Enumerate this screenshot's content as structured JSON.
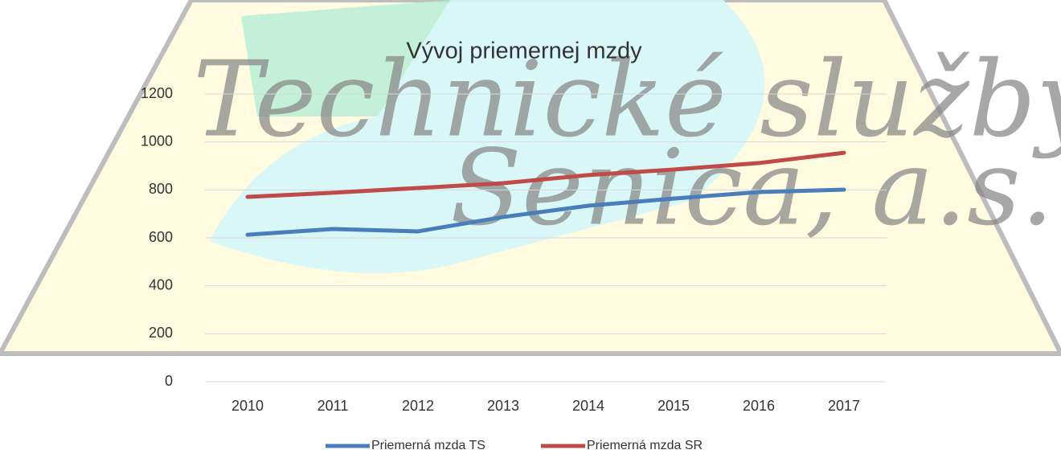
{
  "watermark": [
    "Technické služby",
    "Senica, a.s."
  ],
  "chart_data": {
    "type": "line",
    "title": "Vývoj priemernej mzdy",
    "categories": [
      "2010",
      "2011",
      "2012",
      "2013",
      "2014",
      "2015",
      "2016",
      "2017"
    ],
    "series": [
      {
        "name": "Priemerná mzda TS",
        "color": "#4a7ebb",
        "values": [
          613,
          637,
          627,
          687,
          734,
          764,
          791,
          801
        ]
      },
      {
        "name": "Priemerná mzda SR",
        "color": "#be4b48",
        "values": [
          771,
          788,
          808,
          828,
          862,
          885,
          912,
          955
        ]
      }
    ],
    "ylim": [
      0,
      1200
    ],
    "yticks": [
      0,
      200,
      400,
      600,
      800,
      1000,
      1200
    ],
    "grid": true,
    "legend": "bottom"
  }
}
